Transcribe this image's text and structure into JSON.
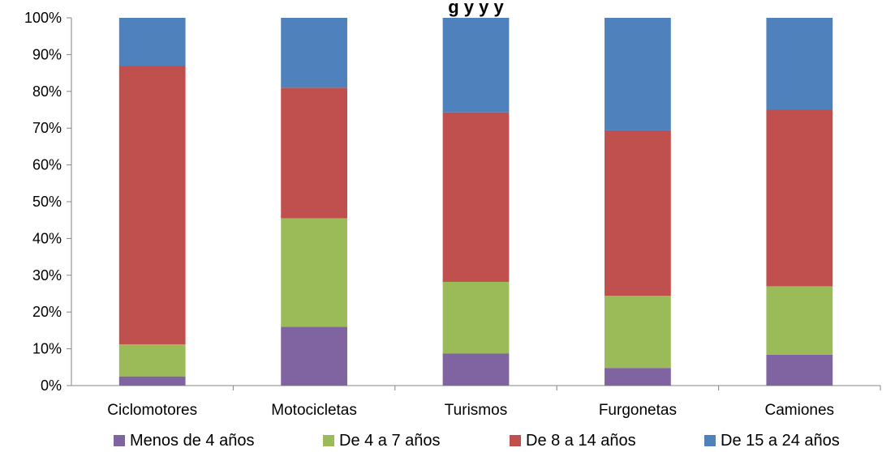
{
  "chart_data": {
    "type": "bar",
    "stacked": true,
    "percent": true,
    "title_partial": "g  y y  y",
    "categories": [
      "Ciclomotores",
      "Motocicletas",
      "Turismos",
      "Furgonetas",
      "Camiones"
    ],
    "series": [
      {
        "name": "Menos de 4 años",
        "color": "#8064a2",
        "values": [
          2.5,
          16,
          8.7,
          4.8,
          8.4
        ]
      },
      {
        "name": "De 4 a 7 años",
        "color": "#9bbb59",
        "values": [
          8.7,
          29.5,
          19.5,
          19.6,
          18.6
        ]
      },
      {
        "name": "De 8 a 14 años",
        "color": "#c0504d",
        "values": [
          75.8,
          35.5,
          46.1,
          45,
          48
        ]
      },
      {
        "name": "De 15 a 24 años",
        "color": "#4f81bd",
        "values": [
          13,
          19,
          25.7,
          30.6,
          25
        ]
      }
    ],
    "yticks": [
      "0%",
      "10%",
      "20%",
      "30%",
      "40%",
      "50%",
      "60%",
      "70%",
      "80%",
      "90%",
      "100%"
    ],
    "ylim": [
      0,
      100
    ],
    "grid": false,
    "legend": "bottom"
  }
}
